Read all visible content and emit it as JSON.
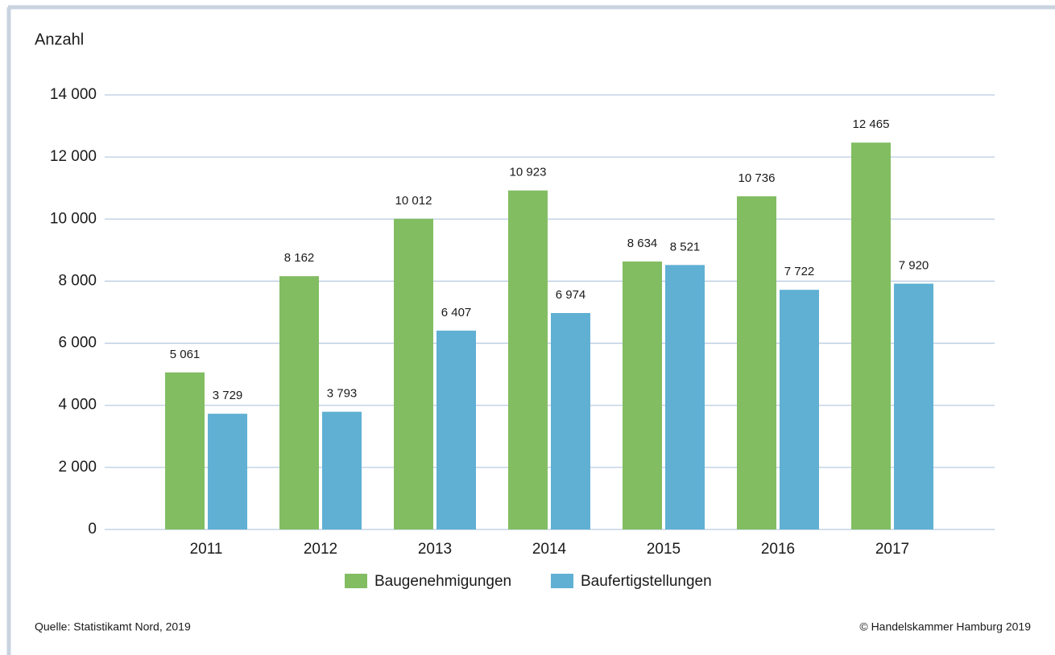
{
  "chart_data": {
    "type": "bar",
    "title": "Anzahl",
    "categories": [
      "2011",
      "2012",
      "2013",
      "2014",
      "2015",
      "2016",
      "2017"
    ],
    "series": [
      {
        "name": "Baugenehmigungen",
        "color": "#82bd62",
        "values": [
          5061,
          8162,
          10012,
          10923,
          8634,
          10736,
          12465
        ],
        "value_labels": [
          "5 061",
          "8 162",
          "10 012",
          "10 923",
          "8 634",
          "10 736",
          "12 465"
        ]
      },
      {
        "name": "Baufertigstellungen",
        "color": "#5fb0d3",
        "values": [
          3729,
          3793,
          6407,
          6974,
          8521,
          7722,
          7920
        ],
        "value_labels": [
          "3 729",
          "3 793",
          "6 407",
          "6 974",
          "8 521",
          "7 722",
          "7 920"
        ]
      }
    ],
    "ylim": [
      0,
      14000
    ],
    "yticks": [
      0,
      {
        "value": 2000,
        "label": "2 000"
      },
      {
        "value": 4000,
        "label": "4 000"
      },
      {
        "value": 6000,
        "label": "6 000"
      },
      {
        "value": 8000,
        "label": "8 000"
      },
      {
        "value": 10000,
        "label": "10 000"
      },
      {
        "value": 12000,
        "label": "12 000"
      },
      {
        "value": 14000,
        "label": "14 000"
      }
    ],
    "grid": true,
    "legend": "bottom",
    "source": "Quelle: Statistikamt Nord, 2019",
    "copyright": "© Handelskammer Hamburg 2019"
  }
}
